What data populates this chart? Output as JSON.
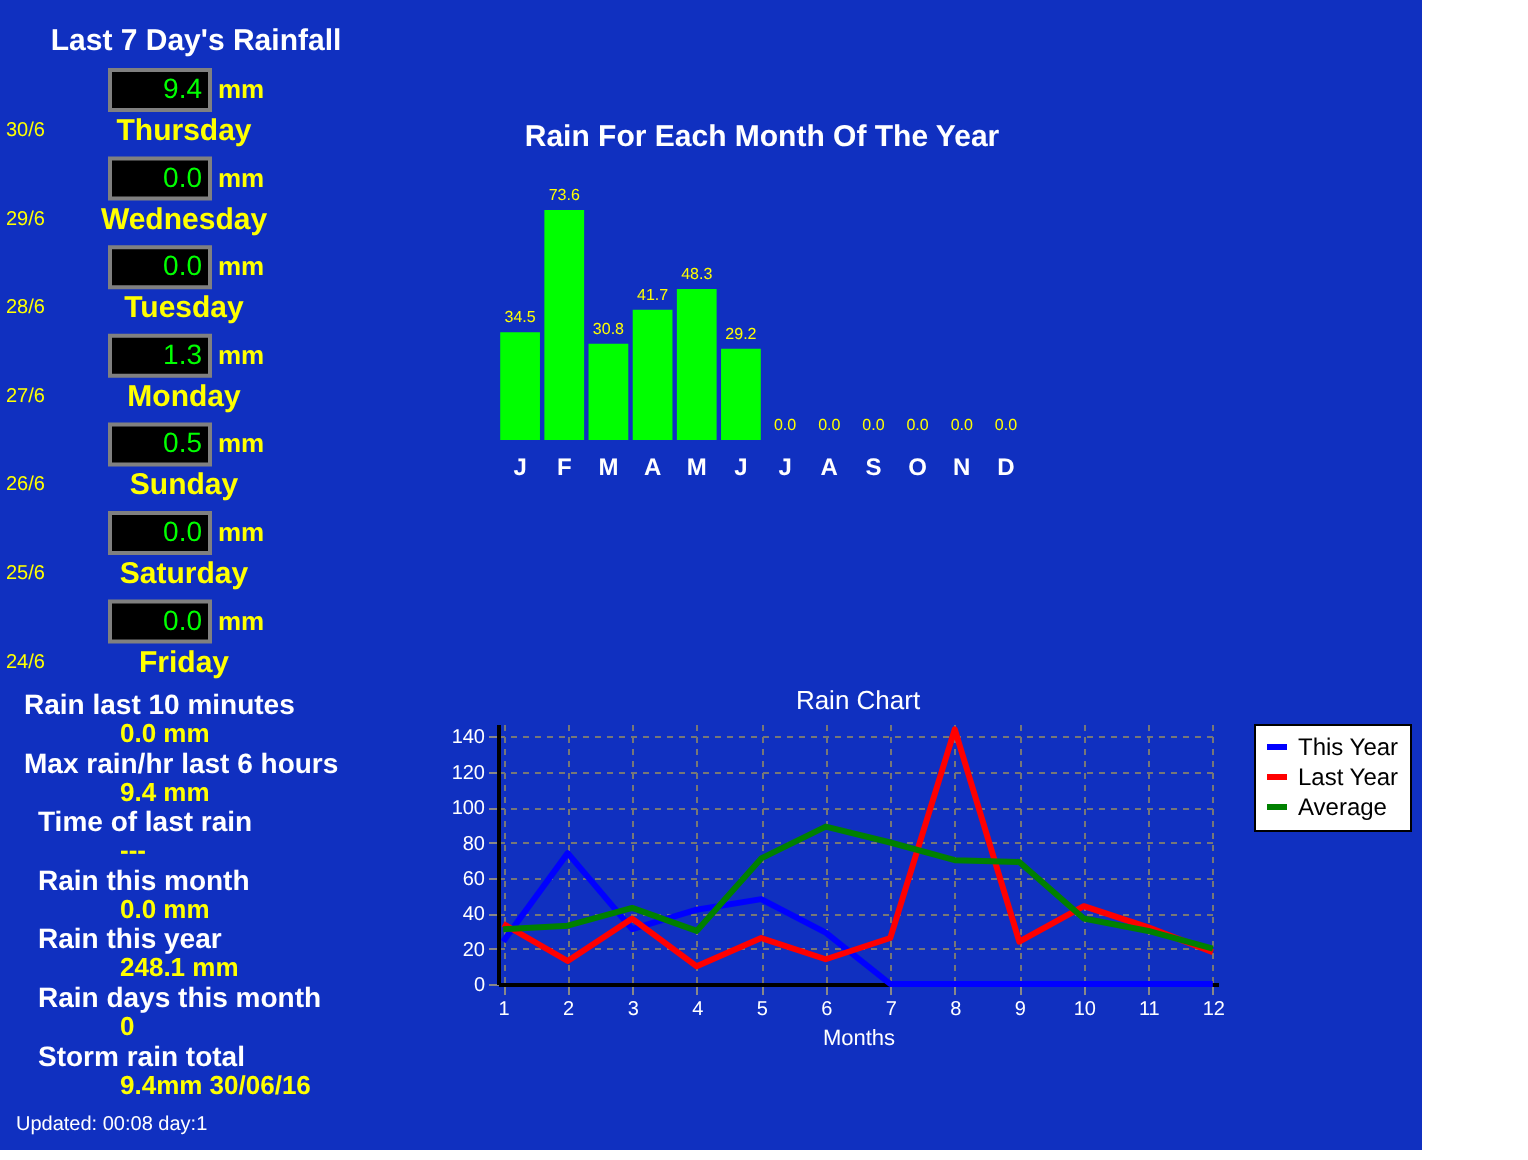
{
  "chart_data": [
    {
      "type": "other",
      "title": "Last 7 Day's Rainfall",
      "annotations": [
        "9.4",
        "mm",
        "30/6",
        "Thursday",
        "0.0",
        "mm",
        "29/6",
        "Wednesday",
        "0.0",
        "mm",
        "28/6",
        "Tuesday",
        "1.3",
        "mm",
        "27/6",
        "Monday",
        "0.5",
        "mm",
        "26/6",
        "Sunday",
        "0.0",
        "mm",
        "25/6",
        "Saturday",
        "0.0",
        "mm",
        "24/6",
        "Friday",
        "Rain last 10 minutes",
        "0.0 mm",
        "Max rain/hr last 6 hours",
        "9.4 mm",
        "Time of last rain",
        "---",
        "Rain this month",
        "0.0 mm",
        "Rain this year",
        "248.1 mm",
        "Rain days this month",
        "0",
        "Storm rain total",
        "9.4mm 30/06/16",
        "Updated: 00:08 day:1"
      ]
    },
    {
      "type": "bar",
      "title": "Rain For Each Month Of The Year",
      "categories": [
        "J",
        "F",
        "M",
        "A",
        "M",
        "J",
        "J",
        "A",
        "S",
        "O",
        "N",
        "D"
      ],
      "values": [
        34.5,
        73.6,
        30.8,
        41.7,
        48.3,
        29.2,
        0.0,
        0.0,
        0.0,
        0.0,
        0.0,
        0.0
      ],
      "value_labels": [
        "34.5",
        "73.6",
        "30.8",
        "41.7",
        "48.3",
        "29.2",
        "0.0",
        "0.0",
        "0.0",
        "0.0",
        "0.0",
        "0.0"
      ],
      "color": "#00ff00",
      "tick_labels": "x"
    },
    {
      "type": "line",
      "title": "Rain Chart",
      "xlabel": "Months",
      "x": [
        1,
        2,
        3,
        4,
        5,
        6,
        7,
        8,
        9,
        10,
        11,
        12
      ],
      "series": [
        {
          "name": "This Year",
          "color": "#0000ff",
          "values": [
            24,
            74,
            31,
            42,
            48,
            29,
            0,
            0,
            0,
            0,
            0,
            0
          ]
        },
        {
          "name": "Last Year",
          "color": "#ff0000",
          "values": [
            34,
            13,
            37,
            10,
            26,
            14,
            26,
            144,
            24,
            44,
            32,
            18
          ]
        },
        {
          "name": "Average",
          "color": "#008000",
          "values": [
            31,
            33,
            43,
            30,
            71,
            89,
            80,
            70,
            69,
            37,
            30,
            20
          ]
        }
      ],
      "xlim": [
        0.92,
        12.08
      ],
      "ylim": [
        0,
        147
      ],
      "xticks": [
        1,
        2,
        3,
        4,
        5,
        6,
        7,
        8,
        9,
        10,
        11,
        12
      ],
      "yticks": [
        0,
        20,
        40,
        60,
        80,
        100,
        120,
        140
      ],
      "grid": true,
      "legend": "top right",
      "marker": "none",
      "line_style": "solid"
    }
  ]
}
